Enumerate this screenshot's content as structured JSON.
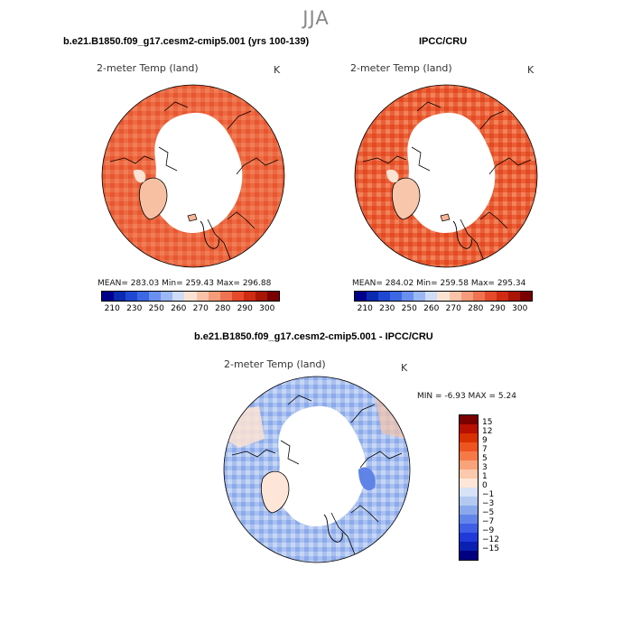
{
  "season": "JJA",
  "panels": [
    {
      "title": "b.e21.B1850.f09_g17.cesm2-cmip5.001 (yrs 100-139)",
      "variable": "2-meter Temp (land)",
      "units": "K",
      "stats_text": "MEAN= 283.03   Min= 259.43   Max= 296.88",
      "mean": 283.03,
      "min": 259.43,
      "max": 296.88
    },
    {
      "title": "IPCC/CRU",
      "variable": "2-meter Temp (land)",
      "units": "K",
      "stats_text": "MEAN= 284.02   Min= 259.58   Max= 295.34",
      "mean": 284.02,
      "min": 259.58,
      "max": 295.34
    },
    {
      "title": "b.e21.B1850.f09_g17.cesm2-cmip5.001 - IPCC/CRU",
      "variable": "2-meter Temp (land)",
      "units": "K",
      "stats_text": "MIN =   -6.93 MAX =    5.24",
      "min": -6.93,
      "max": 5.24
    }
  ],
  "temp_colorbar": {
    "colors": [
      "#00008b",
      "#0a2ab0",
      "#1f48d2",
      "#3d67e3",
      "#6990ee",
      "#9bb8f4",
      "#cfdcf6",
      "#fbe3d3",
      "#f8c3a8",
      "#f59c7a",
      "#ef7351",
      "#e64a2c",
      "#cf2a12",
      "#a91505",
      "#7a0000"
    ],
    "labels": [
      "210",
      "230",
      "250",
      "260",
      "270",
      "280",
      "290",
      "300"
    ]
  },
  "diff_colorbar": {
    "colors": [
      "#7a0000",
      "#b80f00",
      "#d93000",
      "#ee5420",
      "#f57a48",
      "#f9a37a",
      "#fbc9ab",
      "#fde6d7",
      "#d6e2f5",
      "#b3c9ef",
      "#8aa8ec",
      "#6385ea",
      "#3e5fe6",
      "#1f3ad8",
      "#0a20b0",
      "#000080"
    ],
    "labels": [
      "15",
      "12",
      "9",
      "7",
      "5",
      "3",
      "1",
      "0",
      "−1",
      "−3",
      "−5",
      "−7",
      "−9",
      "−12",
      "−15"
    ]
  }
}
